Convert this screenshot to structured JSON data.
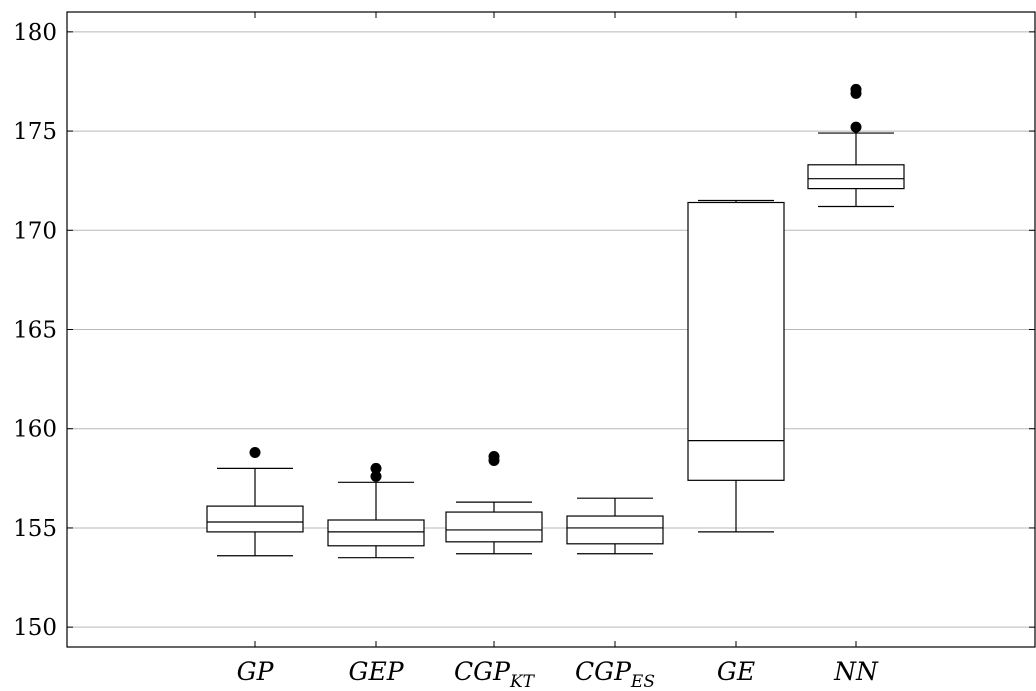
{
  "chart_data": {
    "type": "box",
    "title": "",
    "xlabel": "",
    "ylabel": "",
    "ylim": [
      149,
      181
    ],
    "yticks": [
      150,
      155,
      160,
      165,
      170,
      175,
      180
    ],
    "grid": "horizontal",
    "categories": [
      {
        "main": "GP",
        "sub": ""
      },
      {
        "main": "GEP",
        "sub": ""
      },
      {
        "main": "CGP",
        "sub": "KT"
      },
      {
        "main": "CGP",
        "sub": "ES"
      },
      {
        "main": "GE",
        "sub": ""
      },
      {
        "main": "NN",
        "sub": ""
      }
    ],
    "boxes": [
      {
        "whisker_low": 153.6,
        "q1": 154.8,
        "median": 155.3,
        "q3": 156.1,
        "whisker_high": 158.0,
        "outliers": [
          158.8
        ]
      },
      {
        "whisker_low": 153.5,
        "q1": 154.1,
        "median": 154.8,
        "q3": 155.4,
        "whisker_high": 157.3,
        "outliers": [
          157.6,
          158.0
        ]
      },
      {
        "whisker_low": 153.7,
        "q1": 154.3,
        "median": 154.9,
        "q3": 155.8,
        "whisker_high": 156.3,
        "outliers": [
          158.4,
          158.6
        ]
      },
      {
        "whisker_low": 153.7,
        "q1": 154.2,
        "median": 155.0,
        "q3": 155.6,
        "whisker_high": 156.5,
        "outliers": []
      },
      {
        "whisker_low": 154.8,
        "q1": 157.4,
        "median": 159.4,
        "q3": 171.4,
        "whisker_high": 171.5,
        "outliers": []
      },
      {
        "whisker_low": 171.2,
        "q1": 172.1,
        "median": 172.6,
        "q3": 173.3,
        "whisker_high": 174.9,
        "outliers": [
          175.2,
          176.9,
          177.1
        ]
      }
    ]
  }
}
